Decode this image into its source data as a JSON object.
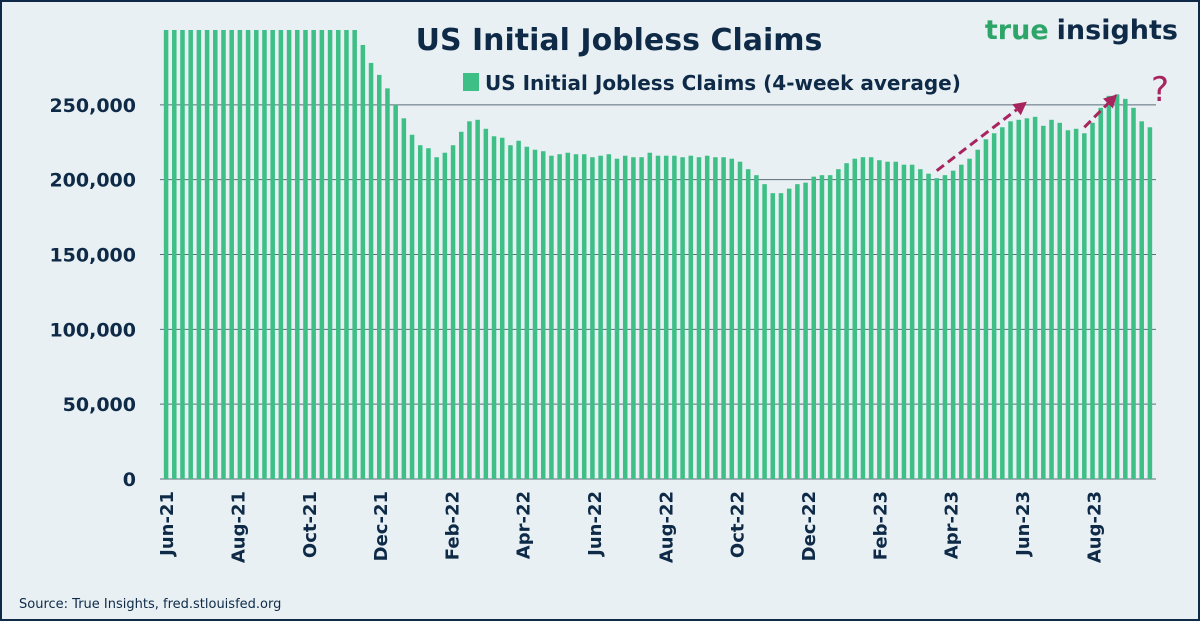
{
  "colors": {
    "bar": "#3dbf86",
    "text": "#0e2a47",
    "grid": "#5c6b78",
    "arrow": "#a8245f",
    "brand_green": "#2ea568",
    "background": "#e8f0f4"
  },
  "brand": {
    "part1": "true",
    "part2": "insights"
  },
  "annotation": "?",
  "source": "Source: True Insights, fred.stlouisfed.org",
  "chart_data": {
    "type": "bar",
    "title": "US Initial Jobless Claims",
    "legend": [
      "US Initial Jobless Claims (4-week average)"
    ],
    "legend_position": "top",
    "grid": "horizontal",
    "ylim": [
      0,
      300000
    ],
    "yticks": [
      "0",
      "50,000",
      "100,000",
      "150,000",
      "200,000",
      "250,000"
    ],
    "ytick_values": [
      0,
      50000,
      100000,
      150000,
      200000,
      250000
    ],
    "xticks": [
      "Jun-21",
      "Aug-21",
      "Oct-21",
      "Dec-21",
      "Feb-22",
      "Apr-22",
      "Jun-22",
      "Aug-22",
      "Oct-22",
      "Dec-22",
      "Feb-23",
      "Apr-23",
      "Jun-23",
      "Aug-23"
    ],
    "xtick_start_index": 0,
    "xtick_interval_weeks": 8.7,
    "series": [
      {
        "name": "US Initial Jobless Claims (4-week average)",
        "values": [
          300000,
          300000,
          300000,
          300000,
          300000,
          300000,
          300000,
          300000,
          300000,
          300000,
          300000,
          300000,
          300000,
          300000,
          300000,
          300000,
          300000,
          300000,
          300000,
          300000,
          300000,
          300000,
          300000,
          300000,
          290000,
          278000,
          270000,
          261000,
          250000,
          241000,
          230000,
          223000,
          221000,
          215000,
          218000,
          223000,
          232000,
          239000,
          240000,
          234000,
          229000,
          228000,
          223000,
          226000,
          222000,
          220000,
          219000,
          216000,
          217000,
          218000,
          217000,
          217000,
          215000,
          216000,
          217000,
          214000,
          216000,
          215000,
          215000,
          218000,
          216000,
          216000,
          216000,
          215000,
          216000,
          215000,
          216000,
          215000,
          215000,
          214000,
          212000,
          207000,
          203000,
          197000,
          191000,
          191000,
          194000,
          197000,
          198000,
          202000,
          203000,
          203000,
          207000,
          211000,
          214000,
          215000,
          215000,
          213000,
          212000,
          212000,
          210000,
          210000,
          207000,
          204000,
          201000,
          203000,
          206000,
          210000,
          214000,
          220000,
          227000,
          231000,
          235000,
          239000,
          240000,
          241000,
          242000,
          236000,
          240000,
          238000,
          233000,
          234000,
          231000,
          238000,
          248000,
          256000,
          257000,
          254000,
          248000,
          239000,
          235000
        ]
      }
    ]
  }
}
